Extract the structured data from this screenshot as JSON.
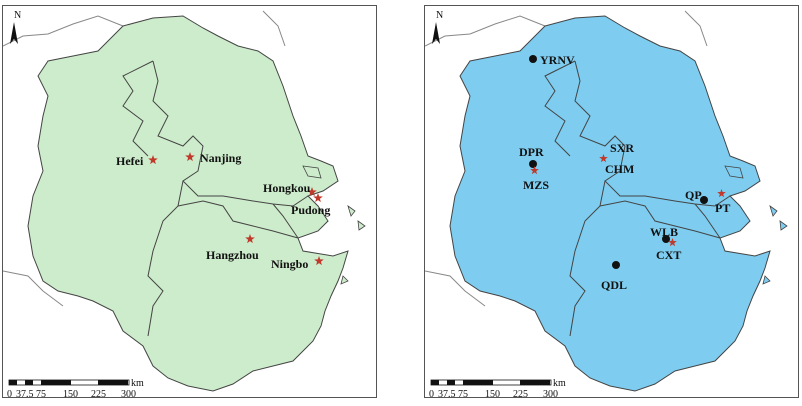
{
  "colors": {
    "left_fill": "#cdeccb",
    "right_fill": "#7ecdf0",
    "border": "#444444",
    "star": "#c0392b",
    "dot": "#111111"
  },
  "north_letter": "N",
  "scale": {
    "unit": "km",
    "ticks": [
      "0",
      "37.5",
      "75",
      "150",
      "225",
      "300"
    ]
  },
  "left_map": {
    "markers": [
      {
        "label": "Hefei",
        "icon": "star-icon"
      },
      {
        "label": "Nanjing",
        "icon": "star-icon"
      },
      {
        "label": "Hongkou",
        "icon": "star-icon"
      },
      {
        "label": "Pudong",
        "icon": "star-icon"
      },
      {
        "label": "Hangzhou",
        "icon": "star-icon"
      },
      {
        "label": "Ningbo",
        "icon": "star-icon"
      }
    ]
  },
  "right_map": {
    "markers": [
      {
        "label": "YRNV",
        "icon": "dot-icon"
      },
      {
        "label": "DPR",
        "icon": "dot-icon"
      },
      {
        "label": "MZS",
        "icon": "star-icon"
      },
      {
        "label": "SXR",
        "icon": "text-only"
      },
      {
        "label": "CHM",
        "icon": "star-icon"
      },
      {
        "label": "QP",
        "icon": "dot-icon"
      },
      {
        "label": "PT",
        "icon": "star-icon"
      },
      {
        "label": "WLB",
        "icon": "dot-icon"
      },
      {
        "label": "CXT",
        "icon": "star-icon"
      },
      {
        "label": "QDL",
        "icon": "dot-icon"
      }
    ]
  }
}
